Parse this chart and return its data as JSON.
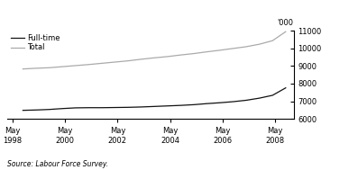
{
  "title": "",
  "xlabel": "",
  "ylabel": "'000",
  "source": "Source: Labour Force Survey.",
  "ylim": [
    6000,
    11000
  ],
  "yticks": [
    6000,
    7000,
    8000,
    9000,
    10000,
    11000
  ],
  "x_years": [
    1998.4,
    1998.9,
    1999.4,
    1999.9,
    2000.4,
    2000.9,
    2001.4,
    2001.9,
    2002.4,
    2002.9,
    2003.4,
    2003.9,
    2004.4,
    2004.9,
    2005.4,
    2005.9,
    2006.4,
    2006.9,
    2007.4,
    2007.9,
    2008.4
  ],
  "fulltime_values": [
    6490,
    6510,
    6540,
    6590,
    6630,
    6640,
    6640,
    6650,
    6660,
    6680,
    6710,
    6740,
    6770,
    6810,
    6870,
    6920,
    6980,
    7060,
    7180,
    7340,
    7760
  ],
  "total_values": [
    8830,
    8870,
    8900,
    8960,
    9020,
    9080,
    9150,
    9220,
    9290,
    9380,
    9460,
    9530,
    9620,
    9700,
    9800,
    9890,
    9990,
    10090,
    10230,
    10430,
    10940
  ],
  "fulltime_color": "#111111",
  "total_color": "#aaaaaa",
  "legend_fulltime": "Full-time",
  "legend_total": "Total",
  "xtick_years": [
    1998,
    2000,
    2002,
    2004,
    2006,
    2008
  ],
  "background_color": "#ffffff",
  "line_width": 0.9
}
